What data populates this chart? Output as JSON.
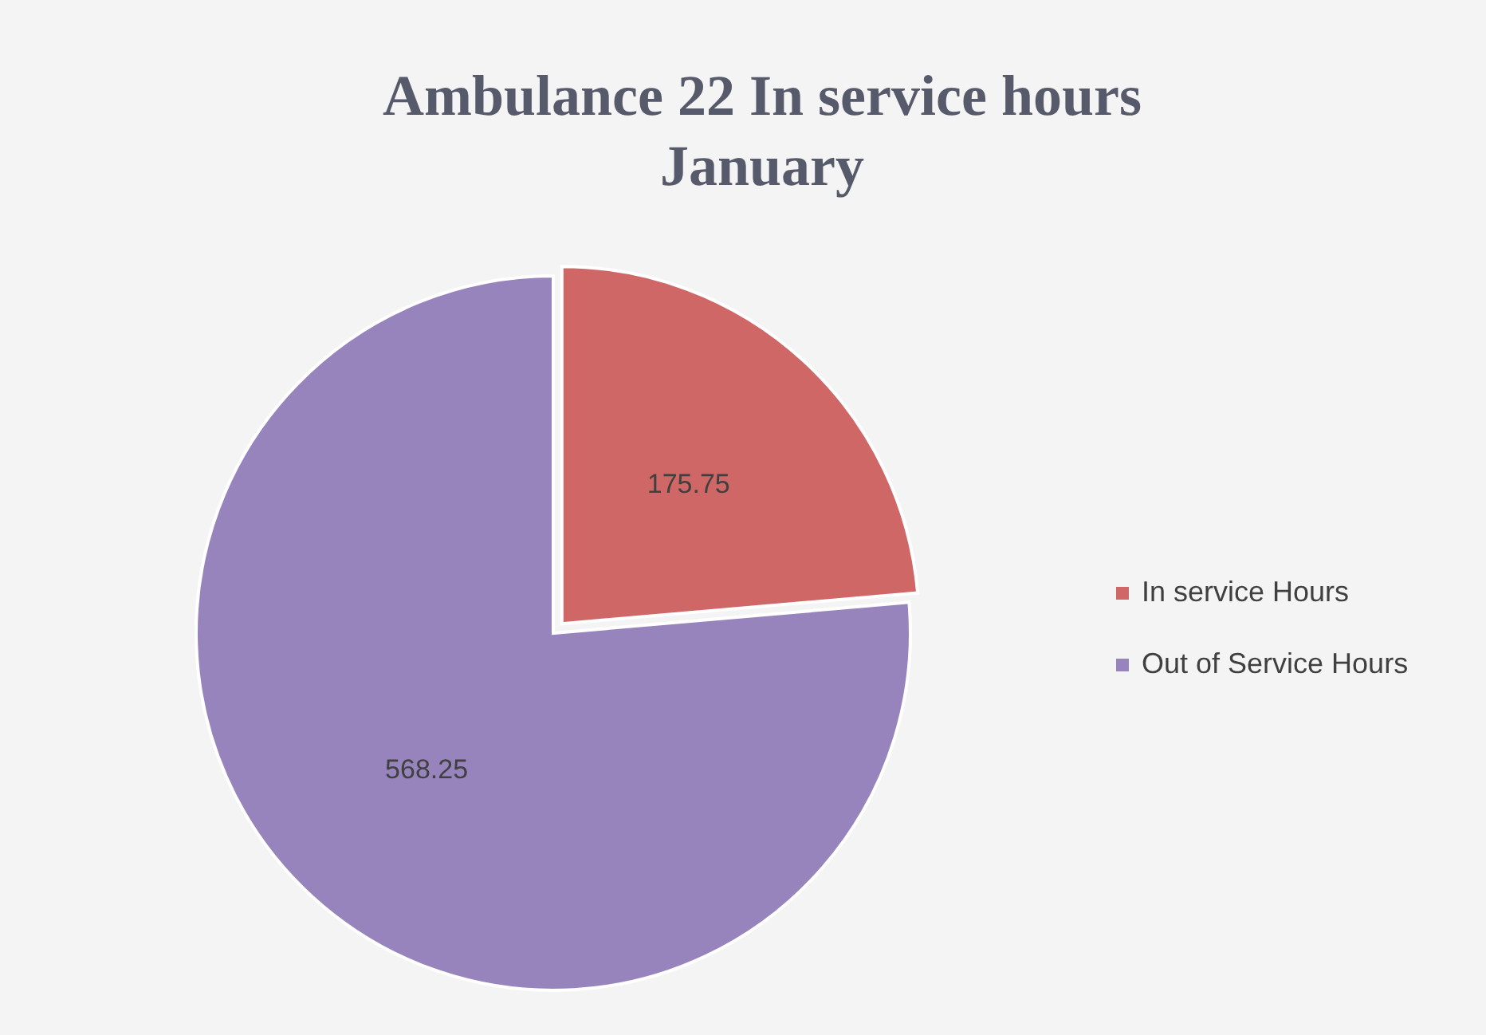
{
  "chart_data": {
    "type": "pie",
    "title": "Ambulance 22 In service hours January",
    "categories": [
      "In service Hours",
      "Out of Service Hours"
    ],
    "values": [
      175.75,
      568.25
    ],
    "colors": [
      "#cf6766",
      "#9884bd"
    ],
    "data_labels": true,
    "legend": "right"
  }
}
